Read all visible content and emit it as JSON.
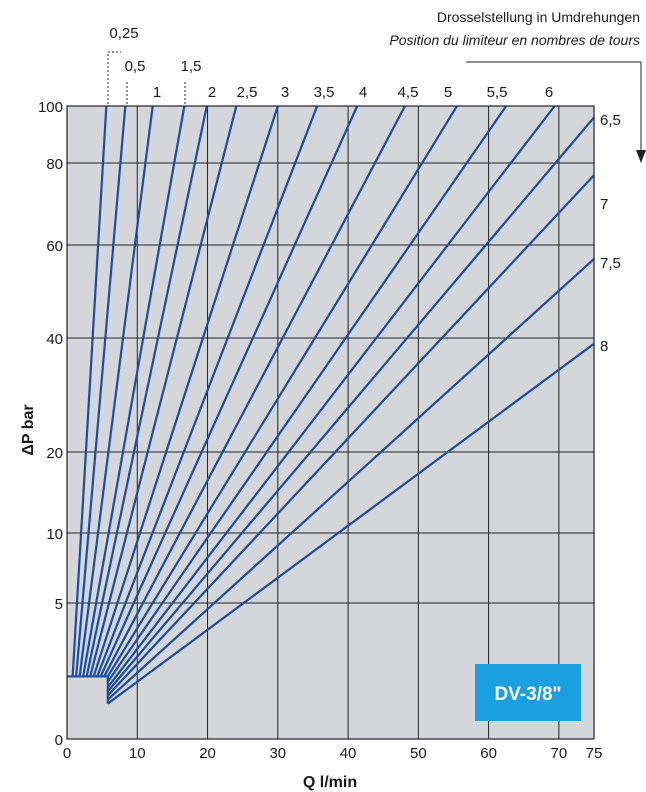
{
  "chart_data": {
    "type": "line",
    "title": "",
    "xlabel": "Q l/min",
    "ylabel": "ΔP bar",
    "xlim": [
      0,
      75
    ],
    "x_ticks": [
      "0",
      "10",
      "20",
      "30",
      "40",
      "50",
      "60",
      "70",
      "75"
    ],
    "y_ticks": [
      "0",
      "5",
      "10",
      "20",
      "40",
      "60",
      "80",
      "100"
    ],
    "grid": true,
    "legend_title": "Drosselstellung in Umdrehungen",
    "legend_subtitle": "Position du limiteur en nombres de tours",
    "badge": "DV-3/8\"",
    "colors": {
      "line": "#1a4d9e",
      "plot_bg": "#d4d6d9",
      "badge": "#1aa0e0"
    },
    "start_bar": 2.3,
    "series": [
      {
        "name": "0,25",
        "x": [
          0.8,
          5.6
        ],
        "y": [
          2.3,
          100
        ]
      },
      {
        "name": "0,5",
        "x": [
          1.3,
          8.3
        ],
        "y": [
          2.3,
          100
        ]
      },
      {
        "name": "1",
        "x": [
          1.8,
          12.2
        ],
        "y": [
          2.3,
          100
        ]
      },
      {
        "name": "1,5",
        "x": [
          2.3,
          16.7
        ],
        "y": [
          2.3,
          100
        ]
      },
      {
        "name": "2",
        "x": [
          2.8,
          19.9
        ],
        "y": [
          2.3,
          100
        ]
      },
      {
        "name": "2,5",
        "x": [
          3.3,
          24.1
        ],
        "y": [
          2.3,
          100
        ]
      },
      {
        "name": "3",
        "x": [
          3.8,
          30.0
        ],
        "y": [
          2.3,
          100
        ]
      },
      {
        "name": "3,5",
        "x": [
          4.3,
          35.6
        ],
        "y": [
          2.3,
          100
        ]
      },
      {
        "name": "4",
        "x": [
          4.8,
          41.3
        ],
        "y": [
          2.3,
          100
        ]
      },
      {
        "name": "4,5",
        "x": [
          5.3,
          48.1
        ],
        "y": [
          2.3,
          100
        ]
      },
      {
        "name": "5",
        "x": [
          5.8,
          55.5
        ],
        "y": [
          2.3,
          100
        ]
      },
      {
        "name": "5,5",
        "x": [
          5.8,
          62.5
        ],
        "y": [
          2.1,
          100
        ]
      },
      {
        "name": "6",
        "x": [
          5.8,
          69.4
        ],
        "y": [
          1.9,
          100
        ]
      },
      {
        "name": "6,5",
        "x": [
          5.8,
          75
        ],
        "y": [
          1.75,
          96
        ]
      },
      {
        "name": "7",
        "x": [
          5.8,
          75
        ],
        "y": [
          1.6,
          77
        ]
      },
      {
        "name": "7,5",
        "x": [
          5.8,
          75
        ],
        "y": [
          1.45,
          57
        ]
      },
      {
        "name": "8",
        "x": [
          5.8,
          75
        ],
        "y": [
          1.3,
          39
        ]
      }
    ]
  }
}
